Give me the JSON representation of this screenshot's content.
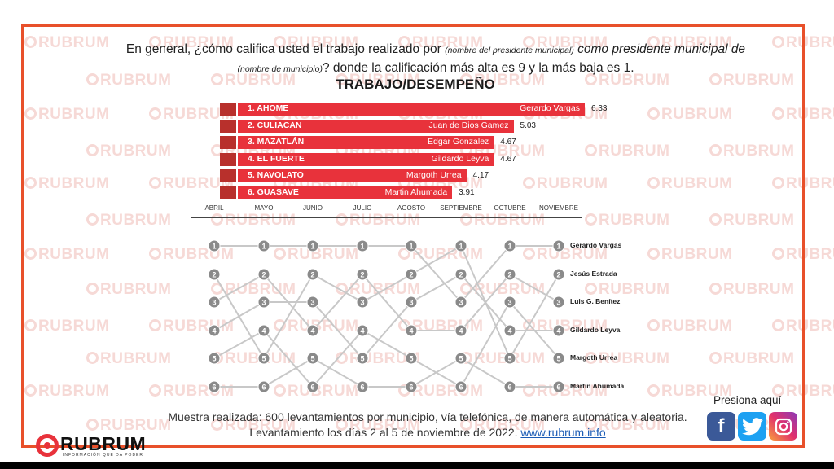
{
  "question": {
    "part1": "En general, ¿cómo califica usted el trabajo realizado por ",
    "hint1": "(nombre del presidente municipal)",
    "part2": " como presidente municipal de ",
    "hint2": "(nombre de municipio)",
    "part3": "? donde la calificación más alta es 9 y la más baja es 1."
  },
  "watermark_text": "RUBRUM",
  "chart_data": {
    "type": "bar",
    "title": "TRABAJO/DESEMPEÑO",
    "categories": [
      "1. AHOME",
      "2. CULIACÁN",
      "3. MAZATLÁN",
      "4. EL FUERTE",
      "5. NAVOLATO",
      "6. GUASAVE"
    ],
    "names": [
      "Gerardo Vargas",
      "Juan de Dios Gamez",
      "Edgar Gonzalez",
      "Gildardo Leyva",
      "Margoth Urrea",
      "Martin Ahumada"
    ],
    "values": [
      6.33,
      5.03,
      4.67,
      4.67,
      4.17,
      3.91
    ],
    "colors": {
      "bar": "#e8323b",
      "line": "#c8c8c8",
      "node": "#8a8a8a"
    },
    "bump": {
      "type": "bump",
      "months": [
        "ABRIL",
        "MAYO",
        "JUNIO",
        "JULIO",
        "AGOSTO",
        "SEPTIEMBRE",
        "OCTUBRE",
        "NOVIEMBRE"
      ],
      "final_names": [
        "Gerardo Vargas",
        "Jesús Estrada",
        "Luis G. Benítez",
        "Gildardo Leyva",
        "Margoth Urrea",
        "Martin Ahumada"
      ],
      "ranks": [
        [
          1,
          1,
          1,
          1,
          1,
          3,
          1,
          1
        ],
        [
          2,
          5,
          2,
          3,
          2,
          1,
          5,
          2
        ],
        [
          3,
          2,
          4,
          2,
          4,
          4,
          2,
          3
        ],
        [
          4,
          3,
          3,
          5,
          3,
          2,
          4,
          4
        ],
        [
          5,
          4,
          6,
          4,
          5,
          6,
          3,
          5
        ],
        [
          6,
          6,
          5,
          6,
          6,
          5,
          6,
          6
        ]
      ]
    }
  },
  "footer": {
    "text": "Muestra realizada: 600 levantamientos por municipio, vía telefónica, de manera automática y aleatoria. Levantamiento los días 2 al 5 de noviembre de 2022. ",
    "link": "www.rubrum.info"
  },
  "press": "Presiona aquí",
  "social": {
    "facebook": {
      "icon": "facebook-icon",
      "color": "#3b5998"
    },
    "twitter": {
      "icon": "twitter-icon",
      "color": "#1da1f2"
    },
    "instagram": {
      "icon": "instagram-icon",
      "color": "#d6249f"
    }
  },
  "logo": {
    "word": "RUBRUM",
    "tagline": "INFORMACIÓN QUE DA PODER"
  }
}
